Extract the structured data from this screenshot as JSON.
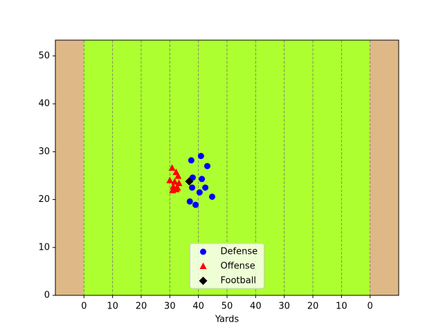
{
  "chart_data": {
    "type": "scatter",
    "xlabel": "Yards",
    "xlim": [
      -10,
      110
    ],
    "ylim": [
      0,
      53.3
    ],
    "xticks": [
      0,
      10,
      20,
      30,
      40,
      50,
      {
        "value": 60,
        "label": "40"
      },
      {
        "value": 70,
        "label": "30"
      },
      {
        "value": 80,
        "label": "20"
      },
      {
        "value": 90,
        "label": "10"
      },
      {
        "value": 100,
        "label": "0"
      }
    ],
    "yticks": [
      0,
      10,
      20,
      30,
      40,
      50
    ],
    "field_color": "#adff2f",
    "endzone_color": "#deb887",
    "grid": true,
    "legend": "lower center",
    "series": [
      {
        "name": "Defense",
        "color": "#0000ff",
        "marker": "circle",
        "x": [
          37.5,
          40.9,
          43.1,
          38.0,
          41.2,
          37.8,
          42.4,
          40.4,
          44.8,
          37.0,
          39.0
        ],
        "y": [
          28.2,
          29.1,
          27.0,
          24.6,
          24.3,
          22.5,
          22.5,
          21.5,
          20.6,
          19.6,
          18.9
        ]
      },
      {
        "name": "Offense",
        "color": "#ff0000",
        "marker": "triangle",
        "x": [
          30.8,
          32.2,
          32.9,
          30.0,
          31.7,
          33.2,
          31.2,
          32.7,
          31.0,
          32.2
        ],
        "y": [
          26.6,
          25.7,
          24.9,
          24.0,
          23.7,
          23.4,
          22.7,
          22.4,
          21.9,
          22.1
        ]
      },
      {
        "name": "Football",
        "color": "#000000",
        "marker": "diamond",
        "x": [
          36.8
        ],
        "y": [
          23.8
        ]
      }
    ]
  }
}
